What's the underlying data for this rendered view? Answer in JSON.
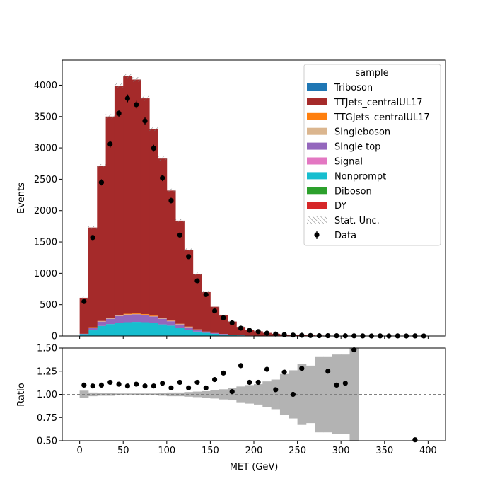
{
  "chart_data": [
    {
      "type": "bar",
      "stacked": true,
      "bin_edges": [
        0,
        10,
        20,
        30,
        40,
        50,
        60,
        70,
        80,
        90,
        100,
        110,
        120,
        130,
        140,
        150,
        160,
        170,
        180,
        190,
        200,
        210,
        220,
        230,
        240,
        250,
        260,
        270,
        280,
        290,
        300,
        310,
        320,
        330,
        340,
        350,
        360,
        370,
        380,
        390,
        400
      ],
      "series": [
        {
          "name": "DY",
          "color": "#d62728",
          "values": [
            0,
            0,
            0,
            0,
            0,
            0,
            0,
            0,
            0,
            0,
            0,
            0,
            0,
            0,
            0,
            0,
            0,
            0,
            0,
            0,
            0,
            0,
            0,
            0,
            0,
            0,
            0,
            0,
            0,
            0,
            0,
            0,
            0,
            0,
            0,
            0,
            0,
            0,
            0,
            0
          ]
        },
        {
          "name": "Diboson",
          "color": "#2ca02c",
          "values": [
            0,
            0,
            0,
            0,
            0,
            0,
            0,
            0,
            0,
            0,
            0,
            0,
            0,
            0,
            0,
            0,
            0,
            0,
            0,
            0,
            0,
            0,
            0,
            0,
            0,
            0,
            0,
            0,
            0,
            0,
            0,
            0,
            0,
            0,
            0,
            0,
            0,
            0,
            0,
            0
          ]
        },
        {
          "name": "Nonprompt",
          "color": "#17becf",
          "values": [
            30,
            90,
            160,
            190,
            210,
            220,
            225,
            220,
            210,
            185,
            165,
            130,
            100,
            70,
            50,
            35,
            25,
            15,
            10,
            5,
            3,
            2,
            1,
            1,
            0,
            0,
            0,
            0,
            0,
            0,
            0,
            0,
            0,
            0,
            0,
            0,
            0,
            0,
            0,
            0
          ]
        },
        {
          "name": "Signal",
          "color": "#e377c2",
          "values": [
            0,
            0,
            0,
            0,
            0,
            0,
            0,
            0,
            0,
            0,
            0,
            0,
            0,
            0,
            0,
            0,
            0,
            0,
            0,
            0,
            0,
            0,
            0,
            0,
            0,
            0,
            0,
            0,
            0,
            0,
            0,
            0,
            0,
            0,
            0,
            0,
            0,
            0,
            0,
            0
          ]
        },
        {
          "name": "Single top",
          "color": "#9467bd",
          "values": [
            5,
            40,
            70,
            85,
            110,
            120,
            120,
            115,
            100,
            90,
            70,
            55,
            40,
            30,
            20,
            12,
            8,
            5,
            3,
            2,
            1,
            1,
            0,
            0,
            0,
            0,
            0,
            0,
            0,
            0,
            0,
            0,
            0,
            0,
            0,
            0,
            0,
            0,
            0,
            0
          ]
        },
        {
          "name": "Singleboson",
          "color": "#dbb68f",
          "values": [
            0,
            5,
            5,
            5,
            5,
            5,
            5,
            5,
            5,
            5,
            5,
            5,
            5,
            5,
            0,
            0,
            0,
            0,
            0,
            0,
            0,
            0,
            0,
            0,
            0,
            0,
            0,
            0,
            0,
            0,
            0,
            0,
            0,
            0,
            0,
            0,
            0,
            0,
            0,
            0
          ]
        },
        {
          "name": "TTGJets_centralUL17",
          "color": "#ff7f0e",
          "values": [
            0,
            5,
            5,
            10,
            10,
            10,
            10,
            10,
            10,
            5,
            5,
            5,
            5,
            0,
            0,
            0,
            0,
            0,
            0,
            0,
            0,
            0,
            0,
            0,
            0,
            0,
            0,
            0,
            0,
            0,
            0,
            0,
            0,
            0,
            0,
            0,
            0,
            0,
            0,
            0
          ]
        },
        {
          "name": "TTJets_centralUL17",
          "color": "#a52a2a",
          "values": [
            575,
            1590,
            2470,
            3210,
            3655,
            3790,
            3730,
            3440,
            2980,
            2545,
            2075,
            1645,
            1225,
            885,
            630,
            420,
            300,
            210,
            132,
            88,
            71,
            47,
            34,
            22,
            19,
            12,
            10,
            7,
            5,
            4,
            3,
            2,
            1,
            0,
            0,
            0,
            0,
            0,
            0,
            0
          ]
        },
        {
          "name": "Triboson",
          "color": "#1f77b4",
          "values": [
            0,
            0,
            0,
            0,
            0,
            0,
            0,
            0,
            0,
            0,
            0,
            0,
            0,
            0,
            0,
            0,
            0,
            0,
            0,
            0,
            0,
            0,
            0,
            0,
            0,
            0,
            0,
            0,
            0,
            0,
            0,
            0,
            0,
            0,
            0,
            0,
            0,
            0,
            0,
            0
          ]
        }
      ],
      "data": {
        "name": "Data",
        "x": [
          5,
          15,
          25,
          35,
          45,
          55,
          65,
          75,
          85,
          95,
          105,
          115,
          125,
          135,
          145,
          155,
          165,
          175,
          185,
          195,
          205,
          215,
          225,
          235,
          245,
          255,
          265,
          275,
          285,
          295,
          305,
          315,
          325,
          335,
          345,
          355,
          365,
          375,
          385,
          395
        ],
        "y": [
          550,
          1570,
          2450,
          3060,
          3550,
          3790,
          3690,
          3430,
          2995,
          2520,
          2160,
          1610,
          1265,
          880,
          660,
          400,
          290,
          210,
          125,
          90,
          70,
          45,
          32,
          22,
          15,
          12,
          8,
          5,
          5,
          4,
          3,
          2,
          1,
          0,
          1,
          0,
          1,
          0,
          1,
          0
        ]
      },
      "ylabel": "Events",
      "ylim": [
        0,
        4400
      ],
      "yticks": [
        0,
        500,
        1000,
        1500,
        2000,
        2500,
        3000,
        3500,
        4000
      ],
      "xlim": [
        -20,
        420
      ],
      "legend": {
        "title": "sample",
        "placement": "top-right",
        "stat_label": "Stat. Unc."
      }
    },
    {
      "type": "scatter",
      "xlabel": "MET (GeV)",
      "ylabel": "Ratio",
      "ylim": [
        0.5,
        1.5
      ],
      "yticks": [
        "0.50",
        "0.75",
        "1.00",
        "1.25",
        "1.50"
      ],
      "xticks": [
        "0",
        "50",
        "100",
        "150",
        "200",
        "250",
        "300",
        "350",
        "400"
      ],
      "xlim": [
        -20,
        420
      ],
      "reference_line": 1.0,
      "x": [
        5,
        15,
        25,
        35,
        45,
        55,
        65,
        75,
        85,
        95,
        105,
        115,
        125,
        135,
        145,
        155,
        165,
        175,
        185,
        195,
        205,
        215,
        225,
        235,
        245,
        255,
        265,
        275,
        285,
        295,
        305,
        315,
        385
      ],
      "y": [
        1.1,
        1.09,
        1.1,
        1.13,
        1.11,
        1.09,
        1.11,
        1.09,
        1.09,
        1.12,
        1.07,
        1.13,
        1.07,
        1.13,
        1.07,
        1.16,
        1.23,
        1.03,
        1.31,
        1.13,
        1.13,
        1.27,
        1.05,
        1.24,
        1.0,
        1.28,
        null,
        null,
        1.25,
        1.1,
        1.12,
        1.48,
        0.51
      ],
      "uncertainty_band": [
        0.04,
        0.02,
        0.015,
        0.015,
        0.01,
        0.01,
        0.01,
        0.01,
        0.01,
        0.015,
        0.02,
        0.02,
        0.025,
        0.03,
        0.035,
        0.045,
        0.055,
        0.065,
        0.085,
        0.1,
        0.11,
        0.14,
        0.16,
        0.22,
        0.26,
        0.33,
        0.31,
        0.41,
        0.41,
        0.43,
        0.43,
        1.0
      ]
    }
  ]
}
